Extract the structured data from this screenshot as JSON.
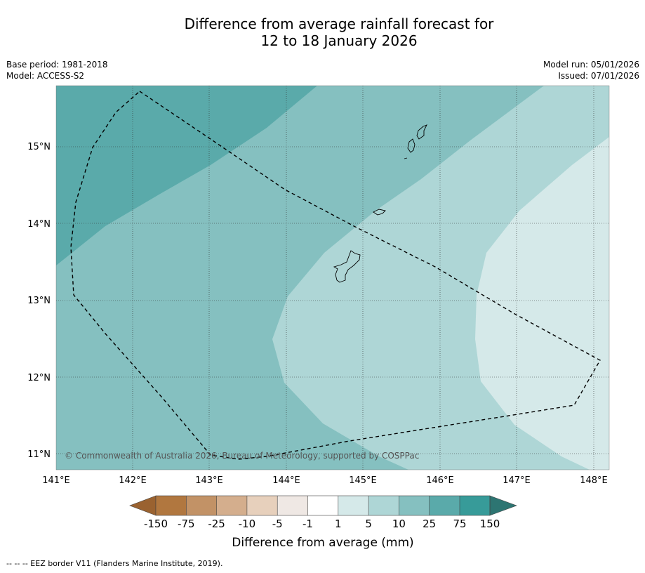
{
  "title": {
    "line1": "Difference from average rainfall forecast for",
    "line2": "12 to 18 January 2026"
  },
  "meta": {
    "base_period": "Base period: 1981-2018",
    "model": "Model: ACCESS-S2",
    "model_run": "Model run: 05/01/2026",
    "issued": "Issued: 07/01/2026"
  },
  "map": {
    "copyright": "© Commonwealth of Australia 2026, Bureau of Meteorology, supported by COSPPac",
    "lat_labels": [
      "15°N",
      "14°N",
      "13°N",
      "12°N",
      "11°N"
    ],
    "lon_labels": [
      "141°E",
      "142°E",
      "143°E",
      "144°E",
      "145°E",
      "146°E",
      "147°E",
      "148°E"
    ],
    "region_colors": {
      "band_25_75": "#5aaaaa",
      "band_10_25": "#85c0c0",
      "band_5_10": "#aed6d6",
      "band_1_5": "#d5e9e9"
    }
  },
  "colorbar": {
    "ticks": [
      "-150",
      "-75",
      "-25",
      "-10",
      "-5",
      "-1",
      "1",
      "5",
      "10",
      "25",
      "75",
      "150"
    ],
    "colors": [
      "#9a6230",
      "#b1773f",
      "#c29266",
      "#d4ae8d",
      "#e7d0bc",
      "#efe8e4",
      "#ffffff",
      "#d5e9e9",
      "#aed6d6",
      "#85c0c0",
      "#5aaaaa",
      "#379b99",
      "#2d7572"
    ],
    "title": "Difference from average (mm)"
  },
  "footer": {
    "legend": "--  --  -- EEZ border V11 (Flanders Marine Institute, 2019)."
  }
}
